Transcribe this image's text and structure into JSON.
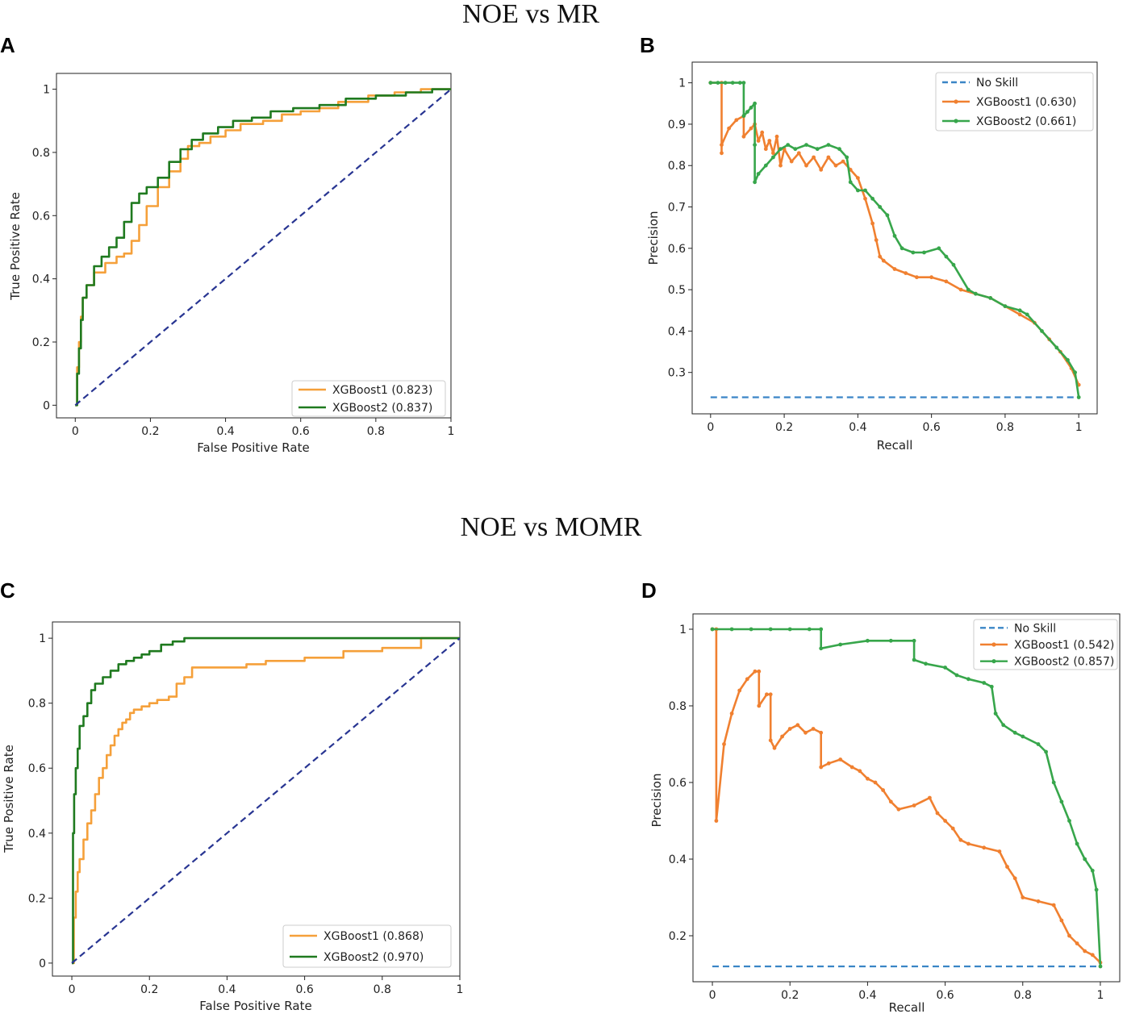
{
  "figure": {
    "top_title": "NOE vs MR",
    "bottom_title": "NOE vs MOMR"
  },
  "colors": {
    "xgb1_roc": "#f5a03a",
    "xgb2_roc": "#1f7a1f",
    "chance": "#283592",
    "xgb1_pr": "#f08030",
    "xgb2_pr": "#37a64b",
    "noskill": "#3a85c6"
  },
  "chart_data": [
    {
      "id": "A",
      "letter": "A",
      "type": "line",
      "title": "",
      "xlabel": "False Positive Rate",
      "ylabel": "True Positive Rate",
      "xlim": [
        -0.05,
        1.0
      ],
      "ylim": [
        -0.04,
        1.05
      ],
      "xticks": [
        0.0,
        0.2,
        0.4,
        0.6,
        0.8,
        1.0
      ],
      "yticks": [
        0.0,
        0.2,
        0.4,
        0.6,
        0.8,
        1.0
      ],
      "legend_position": "bottom-right",
      "series": [
        {
          "name": "XGBoost1 (0.823)",
          "label": "XGBoost1 (0.823)",
          "color": "#f5a03a",
          "style": "step",
          "markers": false,
          "x": [
            0,
            0.005,
            0.01,
            0.015,
            0.02,
            0.03,
            0.05,
            0.08,
            0.11,
            0.13,
            0.15,
            0.17,
            0.19,
            0.22,
            0.25,
            0.28,
            0.3,
            0.33,
            0.36,
            0.4,
            0.44,
            0.5,
            0.55,
            0.6,
            0.65,
            0.7,
            0.78,
            0.85,
            0.92,
            1.0
          ],
          "y": [
            0,
            0.12,
            0.2,
            0.28,
            0.34,
            0.38,
            0.42,
            0.45,
            0.47,
            0.48,
            0.52,
            0.57,
            0.63,
            0.69,
            0.74,
            0.78,
            0.82,
            0.83,
            0.85,
            0.87,
            0.89,
            0.9,
            0.92,
            0.93,
            0.94,
            0.96,
            0.98,
            0.99,
            1.0,
            1.0
          ]
        },
        {
          "name": "XGBoost2 (0.837)",
          "label": "XGBoost2 (0.837)",
          "color": "#1f7a1f",
          "style": "step",
          "markers": false,
          "x": [
            0,
            0.005,
            0.01,
            0.015,
            0.02,
            0.03,
            0.05,
            0.07,
            0.09,
            0.11,
            0.13,
            0.15,
            0.17,
            0.19,
            0.22,
            0.25,
            0.28,
            0.31,
            0.34,
            0.38,
            0.42,
            0.47,
            0.52,
            0.58,
            0.65,
            0.72,
            0.8,
            0.88,
            0.95,
            1.0
          ],
          "y": [
            0,
            0.1,
            0.18,
            0.27,
            0.34,
            0.38,
            0.44,
            0.47,
            0.5,
            0.53,
            0.58,
            0.64,
            0.67,
            0.69,
            0.72,
            0.77,
            0.81,
            0.84,
            0.86,
            0.88,
            0.9,
            0.91,
            0.93,
            0.94,
            0.95,
            0.97,
            0.98,
            0.99,
            1.0,
            1.0
          ]
        },
        {
          "name": "chance",
          "label": "",
          "color": "#283592",
          "style": "dashed",
          "markers": false,
          "x": [
            0,
            1
          ],
          "y": [
            0,
            1
          ]
        }
      ]
    },
    {
      "id": "B",
      "letter": "B",
      "type": "line",
      "title": "",
      "xlabel": "Recall",
      "ylabel": "Precision",
      "xlim": [
        -0.05,
        1.05
      ],
      "ylim": [
        0.2,
        1.05
      ],
      "xticks": [
        0.0,
        0.2,
        0.4,
        0.6,
        0.8,
        1.0
      ],
      "yticks": [
        0.3,
        0.4,
        0.5,
        0.6,
        0.7,
        0.8,
        0.9,
        1.0
      ],
      "legend_position": "top-right",
      "series": [
        {
          "name": "No Skill",
          "label": "No Skill",
          "color": "#3a85c6",
          "style": "dashed",
          "markers": false,
          "x": [
            0,
            1
          ],
          "y": [
            0.24,
            0.24
          ]
        },
        {
          "name": "XGBoost1 (0.630)",
          "label": "XGBoost1 (0.630)",
          "color": "#f08030",
          "style": "line",
          "markers": true,
          "x": [
            0,
            0.03,
            0.03,
            0.03,
            0.05,
            0.07,
            0.09,
            0.09,
            0.11,
            0.12,
            0.13,
            0.14,
            0.15,
            0.16,
            0.17,
            0.18,
            0.19,
            0.2,
            0.22,
            0.24,
            0.26,
            0.28,
            0.3,
            0.32,
            0.34,
            0.36,
            0.38,
            0.4,
            0.42,
            0.44,
            0.45,
            0.46,
            0.47,
            0.5,
            0.53,
            0.56,
            0.6,
            0.64,
            0.68,
            0.72,
            0.76,
            0.8,
            0.84,
            0.88,
            0.92,
            0.95,
            0.98,
            1.0
          ],
          "y": [
            1.0,
            1.0,
            0.83,
            0.85,
            0.89,
            0.91,
            0.92,
            0.87,
            0.89,
            0.9,
            0.86,
            0.88,
            0.84,
            0.86,
            0.83,
            0.87,
            0.8,
            0.84,
            0.81,
            0.83,
            0.8,
            0.82,
            0.79,
            0.82,
            0.8,
            0.81,
            0.79,
            0.77,
            0.72,
            0.66,
            0.62,
            0.58,
            0.57,
            0.55,
            0.54,
            0.53,
            0.53,
            0.52,
            0.5,
            0.49,
            0.48,
            0.46,
            0.44,
            0.42,
            0.38,
            0.35,
            0.31,
            0.27
          ]
        },
        {
          "name": "XGBoost2 (0.661)",
          "label": "XGBoost2 (0.661)",
          "color": "#37a64b",
          "style": "line",
          "markers": true,
          "x": [
            0,
            0.02,
            0.04,
            0.06,
            0.08,
            0.09,
            0.09,
            0.1,
            0.11,
            0.12,
            0.12,
            0.12,
            0.13,
            0.15,
            0.17,
            0.19,
            0.21,
            0.23,
            0.26,
            0.29,
            0.32,
            0.35,
            0.37,
            0.38,
            0.4,
            0.42,
            0.44,
            0.46,
            0.48,
            0.5,
            0.52,
            0.55,
            0.58,
            0.62,
            0.64,
            0.66,
            0.7,
            0.72,
            0.76,
            0.8,
            0.84,
            0.86,
            0.9,
            0.94,
            0.97,
            0.99,
            1.0
          ],
          "y": [
            1.0,
            1.0,
            1.0,
            1.0,
            1.0,
            1.0,
            0.92,
            0.93,
            0.94,
            0.95,
            0.85,
            0.76,
            0.78,
            0.8,
            0.82,
            0.84,
            0.85,
            0.84,
            0.85,
            0.84,
            0.85,
            0.84,
            0.82,
            0.76,
            0.74,
            0.74,
            0.72,
            0.7,
            0.68,
            0.63,
            0.6,
            0.59,
            0.59,
            0.6,
            0.58,
            0.56,
            0.5,
            0.49,
            0.48,
            0.46,
            0.45,
            0.44,
            0.4,
            0.36,
            0.33,
            0.3,
            0.24
          ]
        }
      ]
    },
    {
      "id": "C",
      "letter": "C",
      "type": "line",
      "title": "",
      "xlabel": "False Positive Rate",
      "ylabel": "True Positive Rate",
      "xlim": [
        -0.05,
        1.0
      ],
      "ylim": [
        -0.04,
        1.05
      ],
      "xticks": [
        0.0,
        0.2,
        0.4,
        0.6,
        0.8,
        1.0
      ],
      "yticks": [
        0.0,
        0.2,
        0.4,
        0.6,
        0.8,
        1.0
      ],
      "legend_position": "bottom-right",
      "series": [
        {
          "name": "XGBoost1 (0.868)",
          "label": "XGBoost1 (0.868)",
          "color": "#f5a03a",
          "style": "step",
          "markers": false,
          "x": [
            0,
            0.005,
            0.01,
            0.015,
            0.02,
            0.03,
            0.04,
            0.05,
            0.06,
            0.07,
            0.08,
            0.09,
            0.1,
            0.11,
            0.12,
            0.13,
            0.14,
            0.15,
            0.16,
            0.18,
            0.2,
            0.22,
            0.25,
            0.27,
            0.29,
            0.31,
            0.35,
            0.4,
            0.45,
            0.5,
            0.6,
            0.7,
            0.8,
            0.9,
            0.9,
            1.0
          ],
          "y": [
            0,
            0.14,
            0.22,
            0.28,
            0.32,
            0.38,
            0.43,
            0.47,
            0.52,
            0.57,
            0.6,
            0.64,
            0.67,
            0.7,
            0.72,
            0.74,
            0.75,
            0.77,
            0.78,
            0.79,
            0.8,
            0.81,
            0.82,
            0.86,
            0.88,
            0.91,
            0.91,
            0.91,
            0.92,
            0.93,
            0.94,
            0.96,
            0.97,
            0.98,
            1.0,
            1.0
          ]
        },
        {
          "name": "XGBoost2 (0.970)",
          "label": "XGBoost2 (0.970)",
          "color": "#1f7a1f",
          "style": "step",
          "markers": false,
          "x": [
            0,
            0.003,
            0.006,
            0.01,
            0.015,
            0.02,
            0.03,
            0.04,
            0.05,
            0.06,
            0.08,
            0.1,
            0.12,
            0.14,
            0.16,
            0.18,
            0.2,
            0.23,
            0.26,
            0.29,
            0.35,
            0.5,
            1.0
          ],
          "y": [
            0,
            0.4,
            0.52,
            0.6,
            0.66,
            0.73,
            0.76,
            0.8,
            0.84,
            0.86,
            0.88,
            0.9,
            0.92,
            0.93,
            0.94,
            0.95,
            0.96,
            0.98,
            0.99,
            1.0,
            1.0,
            1.0,
            1.0
          ]
        },
        {
          "name": "chance",
          "label": "",
          "color": "#283592",
          "style": "dashed",
          "markers": false,
          "x": [
            0,
            1
          ],
          "y": [
            0,
            1
          ]
        }
      ]
    },
    {
      "id": "D",
      "letter": "D",
      "type": "line",
      "title": "",
      "xlabel": "Recall",
      "ylabel": "Precision",
      "xlim": [
        -0.05,
        1.05
      ],
      "ylim": [
        0.08,
        1.04
      ],
      "xticks": [
        0.0,
        0.2,
        0.4,
        0.6,
        0.8,
        1.0
      ],
      "yticks": [
        0.2,
        0.4,
        0.6,
        0.8,
        1.0
      ],
      "legend_position": "top-right",
      "series": [
        {
          "name": "No Skill",
          "label": "No Skill",
          "color": "#3a85c6",
          "style": "dashed",
          "markers": false,
          "x": [
            0,
            1
          ],
          "y": [
            0.12,
            0.12
          ]
        },
        {
          "name": "XGBoost1 (0.542)",
          "label": "XGBoost1 (0.542)",
          "color": "#f08030",
          "style": "line",
          "markers": true,
          "x": [
            0,
            0.01,
            0.01,
            0.03,
            0.05,
            0.07,
            0.09,
            0.11,
            0.12,
            0.12,
            0.14,
            0.15,
            0.15,
            0.16,
            0.18,
            0.2,
            0.22,
            0.24,
            0.26,
            0.28,
            0.28,
            0.3,
            0.33,
            0.36,
            0.38,
            0.4,
            0.42,
            0.44,
            0.46,
            0.48,
            0.52,
            0.56,
            0.58,
            0.6,
            0.62,
            0.64,
            0.66,
            0.7,
            0.74,
            0.76,
            0.78,
            0.8,
            0.84,
            0.88,
            0.9,
            0.92,
            0.94,
            0.96,
            0.98,
            1.0
          ],
          "y": [
            1.0,
            1.0,
            0.5,
            0.7,
            0.78,
            0.84,
            0.87,
            0.89,
            0.89,
            0.8,
            0.83,
            0.83,
            0.71,
            0.69,
            0.72,
            0.74,
            0.75,
            0.73,
            0.74,
            0.73,
            0.64,
            0.65,
            0.66,
            0.64,
            0.63,
            0.61,
            0.6,
            0.58,
            0.55,
            0.53,
            0.54,
            0.56,
            0.52,
            0.5,
            0.48,
            0.45,
            0.44,
            0.43,
            0.42,
            0.38,
            0.35,
            0.3,
            0.29,
            0.28,
            0.24,
            0.2,
            0.18,
            0.16,
            0.15,
            0.13
          ]
        },
        {
          "name": "XGBoost2 (0.857)",
          "label": "XGBoost2 (0.857)",
          "color": "#37a64b",
          "style": "line",
          "markers": true,
          "x": [
            0,
            0.05,
            0.1,
            0.15,
            0.2,
            0.25,
            0.28,
            0.28,
            0.33,
            0.4,
            0.46,
            0.52,
            0.52,
            0.55,
            0.6,
            0.63,
            0.66,
            0.7,
            0.72,
            0.73,
            0.75,
            0.78,
            0.8,
            0.84,
            0.86,
            0.88,
            0.9,
            0.92,
            0.94,
            0.96,
            0.98,
            0.99,
            1.0
          ],
          "y": [
            1.0,
            1.0,
            1.0,
            1.0,
            1.0,
            1.0,
            1.0,
            0.95,
            0.96,
            0.97,
            0.97,
            0.97,
            0.92,
            0.91,
            0.9,
            0.88,
            0.87,
            0.86,
            0.85,
            0.78,
            0.75,
            0.73,
            0.72,
            0.7,
            0.68,
            0.6,
            0.55,
            0.5,
            0.44,
            0.4,
            0.37,
            0.32,
            0.12
          ]
        }
      ]
    }
  ]
}
